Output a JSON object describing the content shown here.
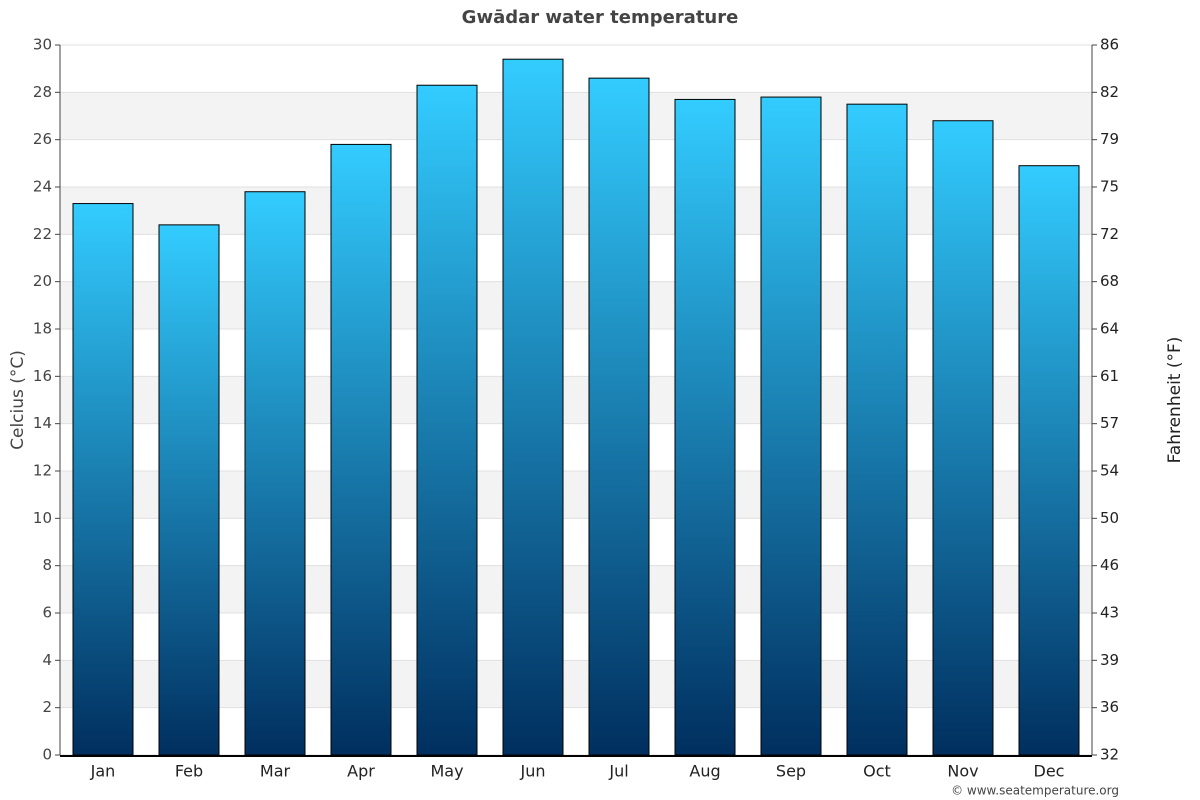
{
  "chart_data": {
    "type": "bar",
    "title": "Gwādar water temperature",
    "y_label": "Celcius (°C)",
    "y2_label": "Fahrenheit (°F)",
    "credit": "© www.seatemperature.org",
    "categories": [
      "Jan",
      "Feb",
      "Mar",
      "Apr",
      "May",
      "Jun",
      "Jul",
      "Aug",
      "Sep",
      "Oct",
      "Nov",
      "Dec"
    ],
    "values": [
      23.3,
      22.4,
      23.8,
      25.8,
      28.3,
      29.4,
      28.6,
      27.7,
      27.8,
      27.5,
      26.8,
      24.9
    ],
    "color": [
      "#33ccff",
      "#002f5f"
    ],
    "ylim": [
      0,
      30
    ],
    "yticks": [
      0,
      2,
      4,
      6,
      8,
      10,
      12,
      14,
      16,
      18,
      20,
      22,
      24,
      26,
      28,
      30
    ],
    "y2lim": [
      32,
      86
    ],
    "y2ticks": [
      32,
      {
        "value": 35.6,
        "label": "36"
      },
      {
        "value": 39.2,
        "label": "39"
      },
      {
        "value": 42.8,
        "label": "43"
      },
      {
        "value": 46.4,
        "label": "46"
      },
      50,
      {
        "value": 53.6,
        "label": "54"
      },
      {
        "value": 57.2,
        "label": "57"
      },
      {
        "value": 60.8,
        "label": "61"
      },
      {
        "value": 64.4,
        "label": "64"
      },
      68,
      {
        "value": 71.6,
        "label": "72"
      },
      {
        "value": 75.2,
        "label": "75"
      },
      {
        "value": 78.8,
        "label": "79"
      },
      {
        "value": 82.4,
        "label": "82"
      },
      86
    ],
    "grid": true
  }
}
